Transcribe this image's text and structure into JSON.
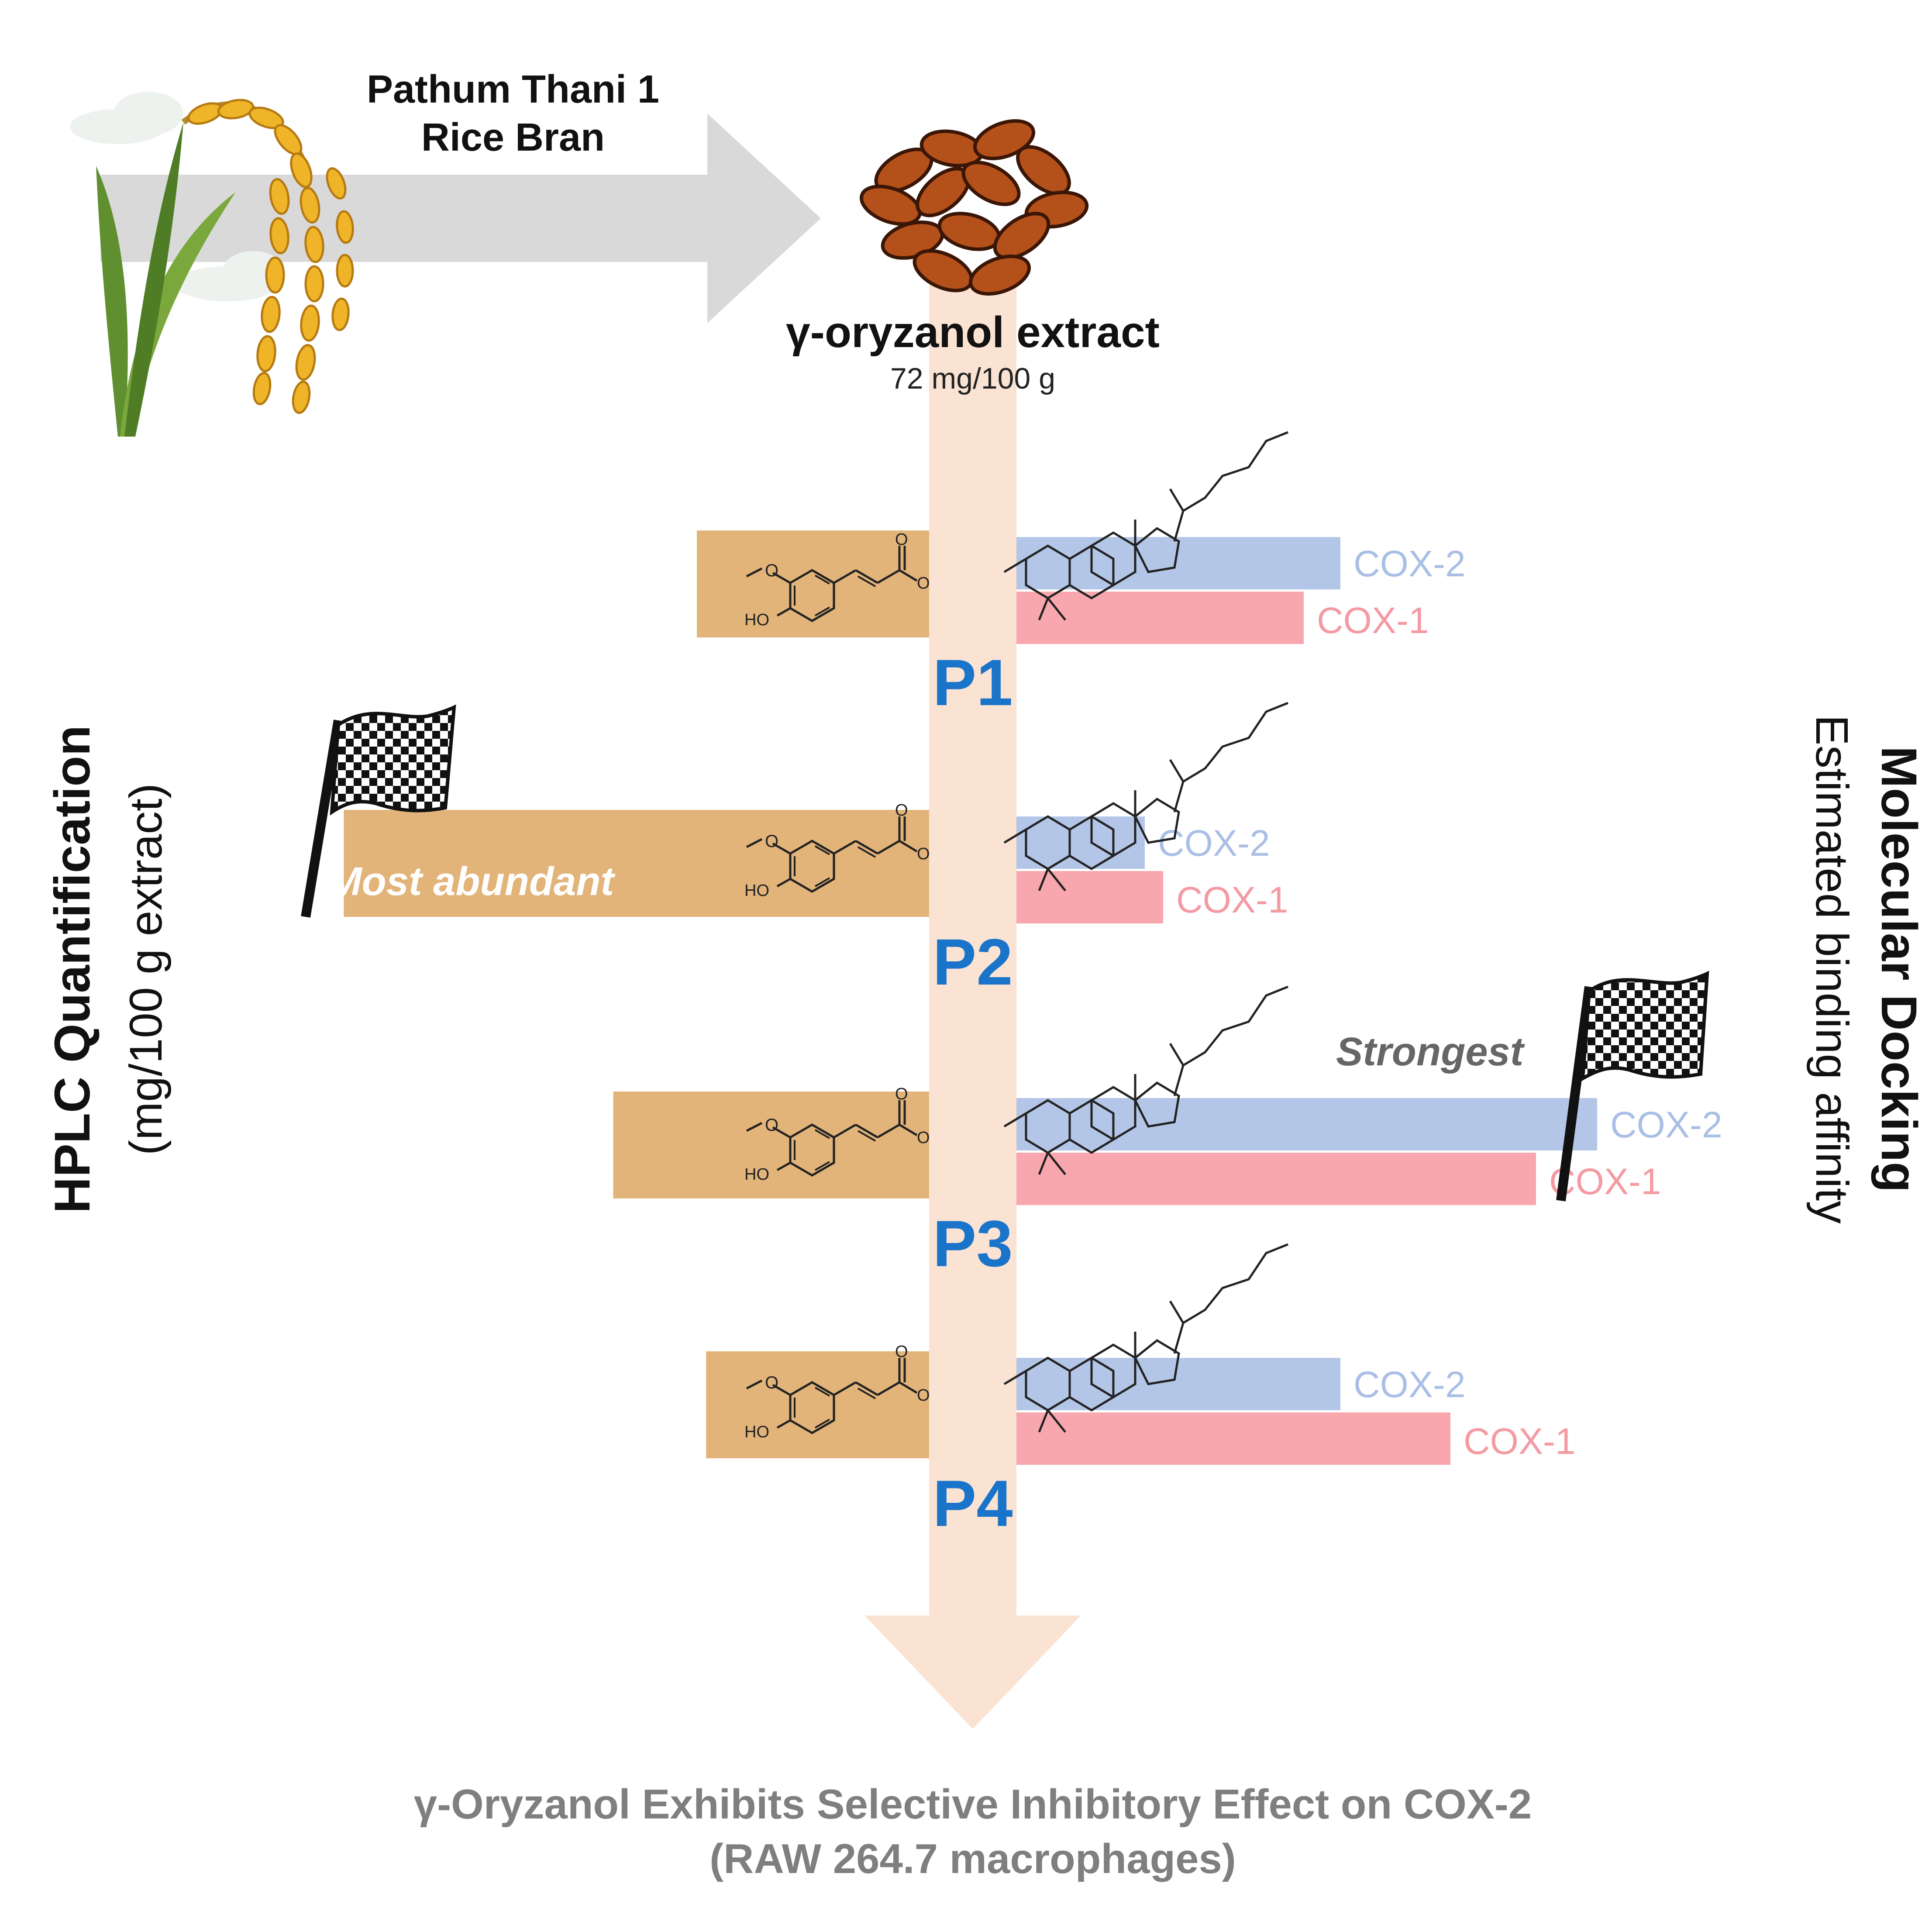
{
  "source": {
    "line1": "Pathum Thani 1",
    "line2": "Rice Bran",
    "icon": "rice-plant-icon"
  },
  "extract": {
    "title": "γ-oryzanol extract",
    "amount": "72 mg/100 g",
    "icon": "rice-bran-grains-icon"
  },
  "left_axis": {
    "title": "HPLC Quantification",
    "unit": "(mg/100 g extract)"
  },
  "right_axis": {
    "title": "Molecular Docking",
    "subtitle": "Estimated binding affinity"
  },
  "annotations": {
    "most_abundant": "Most abundant",
    "strongest": "Strongest",
    "flag_icon": "checkered-flag-icon"
  },
  "colors": {
    "hplc_bar": "#e2b479",
    "cox2": "#b3c6e7",
    "cox2_text": "#aabfe6",
    "cox1": "#f9a7ae",
    "cox1_text": "#f49aa2",
    "compound_label": "#1a74c9",
    "stream": "#fbe3d3",
    "conclusion_text": "#7f7f7f"
  },
  "chart_data": {
    "type": "bar",
    "categories": [
      "P1",
      "P2",
      "P3",
      "P4"
    ],
    "hplc_relative": [
      0.25,
      0.63,
      0.34,
      0.24
    ],
    "series": [
      {
        "name": "COX-2",
        "values": [
          0.53,
          0.21,
          0.95,
          0.53
        ]
      },
      {
        "name": "COX-1",
        "values": [
          0.47,
          0.24,
          0.85,
          0.71
        ]
      }
    ]
  },
  "conclusion": {
    "line1": "γ-Oryzanol Exhibits Selective Inhibitory Effect on COX-2",
    "line2": "(RAW 264.7 macrophages)"
  }
}
